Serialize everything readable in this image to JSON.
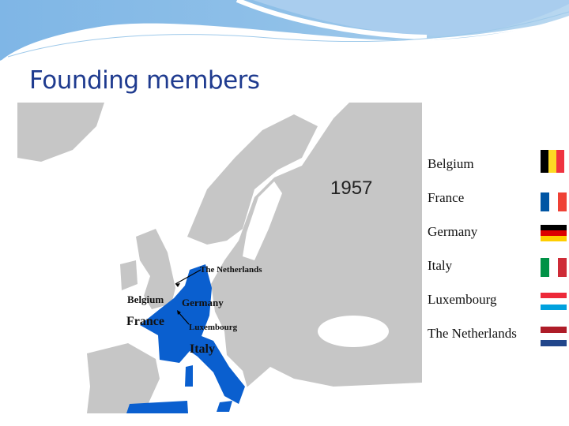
{
  "slide": {
    "title": "Founding members",
    "map": {
      "year": "1957",
      "labels": {
        "netherlands": "The Netherlands",
        "belgium": "Belgium",
        "germany": "Germany",
        "france": "France",
        "luxembourg": "Luxembourg",
        "italy": "Italy"
      },
      "member_color": "#0a5fcf",
      "land_color": "#c6c6c6"
    },
    "members": [
      {
        "name": "Belgium",
        "flag": "belgium-flag-icon",
        "colors": [
          "#000000",
          "#fdda24",
          "#ef3340"
        ],
        "orientation": "vertical"
      },
      {
        "name": "France",
        "flag": "france-flag-icon",
        "colors": [
          "#0055a4",
          "#ffffff",
          "#ef4135"
        ],
        "orientation": "vertical"
      },
      {
        "name": "Germany",
        "flag": "germany-flag-icon",
        "colors": [
          "#000000",
          "#dd0000",
          "#ffce00"
        ],
        "orientation": "horizontal"
      },
      {
        "name": "Italy",
        "flag": "italy-flag-icon",
        "colors": [
          "#009246",
          "#ffffff",
          "#ce2b37"
        ],
        "orientation": "vertical"
      },
      {
        "name": "Luxembourg",
        "flag": "luxembourg-flag-icon",
        "colors": [
          "#ed2939",
          "#ffffff",
          "#00a1de"
        ],
        "orientation": "horizontal"
      },
      {
        "name": "The Netherlands",
        "flag": "netherlands-flag-icon",
        "colors": [
          "#ae1c28",
          "#ffffff",
          "#21468b"
        ],
        "orientation": "horizontal"
      }
    ]
  }
}
